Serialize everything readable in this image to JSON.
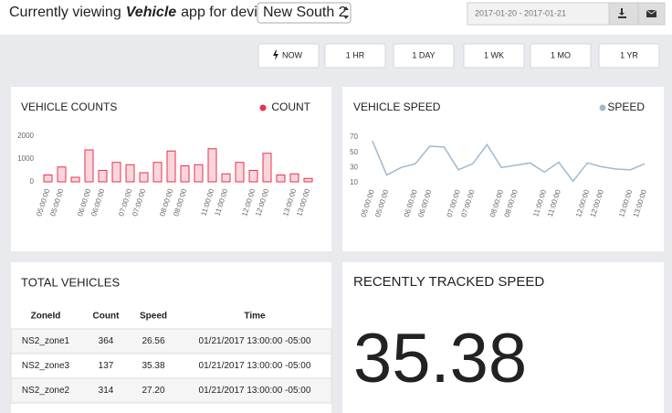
{
  "header": {
    "prefix": "Currently viewing",
    "app": "Vehicle",
    "suffix": "app for device",
    "device": "New South 2",
    "date_range": "2017-01-20 - 2017-01-21"
  },
  "time_buttons": [
    "NOW",
    "1 HR",
    "1 DAY",
    "1 WK",
    "1 MO",
    "1 YR"
  ],
  "chart_data": [
    {
      "type": "bar",
      "title": "VEHICLE COUNTS",
      "categories": [
        "05:00:00",
        "05:00:00",
        null,
        "06:00:00",
        "06:00:00",
        null,
        "07:00:00",
        "07:00:00",
        null,
        "08:00:00",
        "08:00:00",
        null,
        "11:00:00",
        "11:00:00",
        null,
        "12:00:00",
        "12:00:00",
        null,
        "13:00:00",
        "13:00:00"
      ],
      "series": [
        {
          "name": "COUNT",
          "color": "#e8334f",
          "values": [
            300,
            650,
            200,
            1400,
            500,
            850,
            750,
            400,
            850,
            1350,
            700,
            750,
            1450,
            350,
            850,
            500,
            1250,
            300,
            350,
            150
          ]
        }
      ],
      "ylim": [
        0,
        2000
      ],
      "yticks": [
        0,
        1000,
        2000
      ]
    },
    {
      "type": "line",
      "title": "VEHICLE SPEED",
      "categories": [
        "05:00:00",
        "05:00:00",
        null,
        "06:00:00",
        "06:00:00",
        null,
        "07:00:00",
        "07:00:00",
        null,
        "08:00:00",
        "08:00:00",
        null,
        "11:00:00",
        "11:00:00",
        null,
        "12:00:00",
        "12:00:00",
        null,
        "13:00:00",
        "13:00:00"
      ],
      "series": [
        {
          "name": "SPEED",
          "color": "#9fb9cf",
          "values": [
            65,
            20,
            30,
            35,
            58,
            57,
            27,
            35,
            60,
            30,
            33,
            36,
            24,
            37,
            12,
            36,
            31,
            28,
            27,
            35
          ]
        }
      ],
      "ylim": [
        10,
        70
      ],
      "yticks": [
        10,
        30,
        50,
        70
      ]
    }
  ],
  "total_vehicles": {
    "title": "TOTAL VEHICLES",
    "columns": [
      "ZoneId",
      "Count",
      "Speed",
      "Time"
    ],
    "rows": [
      [
        "NS2_zone1",
        "364",
        "26.56",
        "01/21/2017 13:00:00 -05:00"
      ],
      [
        "NS2_zone3",
        "137",
        "35.38",
        "01/21/2017 13:00:00 -05:00"
      ],
      [
        "NS2_zone2",
        "314",
        "27.20",
        "01/21/2017 13:00:00 -05:00"
      ]
    ]
  },
  "recent_speed": {
    "title": "RECENTLY TRACKED SPEED",
    "value": 35.38
  }
}
